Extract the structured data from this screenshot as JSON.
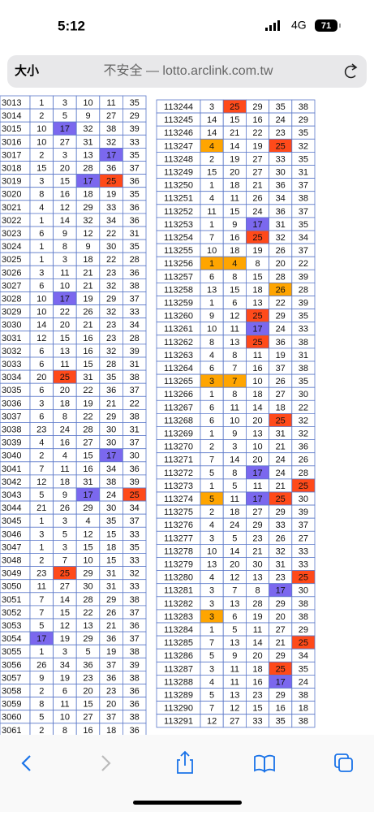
{
  "status": {
    "time": "5:12",
    "network": "4G",
    "battery": "71"
  },
  "url_bar": {
    "text_size": "大小",
    "address": "不安全 — lotto.arclink.com.tw"
  },
  "highlight": {
    "17": "#7b68ee",
    "25": "#ff4a1a"
  },
  "orange_color": "#ffa500",
  "orange": {
    "113247": [
      4
    ],
    "113256": [
      1,
      4
    ],
    "113258": [
      26
    ],
    "113265": [
      3,
      7
    ],
    "113274": [
      5
    ],
    "113283": [
      3
    ]
  },
  "left": {
    "rows": [
      [
        3013,
        1,
        3,
        10,
        11,
        35
      ],
      [
        3014,
        2,
        5,
        9,
        27,
        29
      ],
      [
        3015,
        10,
        17,
        32,
        38,
        39
      ],
      [
        3016,
        10,
        27,
        31,
        32,
        33
      ],
      [
        3017,
        2,
        3,
        13,
        17,
        35
      ],
      [
        3018,
        15,
        20,
        28,
        36,
        37
      ],
      [
        3019,
        3,
        15,
        17,
        25,
        36
      ],
      [
        3020,
        8,
        16,
        18,
        19,
        35
      ],
      [
        3021,
        4,
        12,
        29,
        33,
        36
      ],
      [
        3022,
        1,
        14,
        32,
        34,
        36
      ],
      [
        3023,
        6,
        9,
        12,
        22,
        31
      ],
      [
        3024,
        1,
        8,
        9,
        30,
        35
      ],
      [
        3025,
        1,
        3,
        18,
        22,
        28
      ],
      [
        3026,
        3,
        11,
        21,
        23,
        36
      ],
      [
        3027,
        6,
        10,
        21,
        32,
        38
      ],
      [
        3028,
        10,
        17,
        19,
        29,
        37
      ],
      [
        3029,
        10,
        22,
        26,
        32,
        33
      ],
      [
        3030,
        14,
        20,
        21,
        23,
        34
      ],
      [
        3031,
        12,
        15,
        16,
        23,
        28
      ],
      [
        3032,
        6,
        13,
        16,
        32,
        39
      ],
      [
        3033,
        6,
        11,
        15,
        28,
        31
      ],
      [
        3034,
        20,
        25,
        31,
        35,
        38
      ],
      [
        3035,
        6,
        20,
        22,
        36,
        37
      ],
      [
        3036,
        3,
        18,
        19,
        21,
        22
      ],
      [
        3037,
        6,
        8,
        22,
        29,
        38
      ],
      [
        3038,
        23,
        24,
        28,
        30,
        31
      ],
      [
        3039,
        4,
        16,
        27,
        30,
        37
      ],
      [
        3040,
        2,
        4,
        15,
        17,
        30
      ],
      [
        3041,
        7,
        11,
        16,
        34,
        36
      ],
      [
        3042,
        12,
        18,
        31,
        38,
        39
      ],
      [
        3043,
        5,
        9,
        17,
        24,
        25
      ],
      [
        3044,
        21,
        26,
        29,
        30,
        34
      ],
      [
        3045,
        1,
        3,
        4,
        35,
        37
      ],
      [
        3046,
        3,
        5,
        12,
        15,
        33
      ],
      [
        3047,
        1,
        3,
        15,
        18,
        35
      ],
      [
        3048,
        2,
        7,
        10,
        15,
        33
      ],
      [
        3049,
        23,
        25,
        29,
        31,
        32
      ],
      [
        3050,
        11,
        27,
        30,
        31,
        33
      ],
      [
        3051,
        7,
        14,
        28,
        29,
        38
      ],
      [
        3052,
        7,
        15,
        22,
        26,
        37
      ],
      [
        3053,
        5,
        12,
        13,
        21,
        36
      ],
      [
        3054,
        17,
        19,
        29,
        36,
        37
      ],
      [
        3055,
        1,
        3,
        5,
        19,
        38
      ],
      [
        3056,
        26,
        34,
        36,
        37,
        39
      ],
      [
        3057,
        9,
        19,
        23,
        36,
        38
      ],
      [
        3058,
        2,
        6,
        20,
        23,
        36
      ],
      [
        3059,
        8,
        11,
        15,
        20,
        36
      ],
      [
        3060,
        5,
        10,
        27,
        37,
        38
      ],
      [
        3061,
        2,
        8,
        16,
        18,
        36
      ]
    ]
  },
  "right": {
    "rows": [
      [
        113244,
        3,
        25,
        29,
        35,
        38
      ],
      [
        113245,
        14,
        15,
        16,
        24,
        29
      ],
      [
        113246,
        14,
        21,
        22,
        23,
        35
      ],
      [
        113247,
        4,
        14,
        19,
        25,
        32
      ],
      [
        113248,
        2,
        19,
        27,
        33,
        35
      ],
      [
        113249,
        15,
        20,
        27,
        30,
        31
      ],
      [
        113250,
        1,
        18,
        21,
        36,
        37
      ],
      [
        113251,
        4,
        11,
        26,
        34,
        38
      ],
      [
        113252,
        11,
        15,
        24,
        36,
        37
      ],
      [
        113253,
        1,
        9,
        17,
        31,
        35
      ],
      [
        113254,
        7,
        16,
        25,
        32,
        34
      ],
      [
        113255,
        10,
        18,
        19,
        26,
        37
      ],
      [
        113256,
        1,
        4,
        8,
        20,
        22
      ],
      [
        113257,
        6,
        8,
        15,
        28,
        39
      ],
      [
        113258,
        13,
        15,
        18,
        26,
        28
      ],
      [
        113259,
        1,
        6,
        13,
        22,
        39
      ],
      [
        113260,
        9,
        12,
        25,
        29,
        35
      ],
      [
        113261,
        10,
        11,
        17,
        24,
        33
      ],
      [
        113262,
        8,
        13,
        25,
        36,
        38
      ],
      [
        113263,
        4,
        8,
        11,
        19,
        31
      ],
      [
        113264,
        6,
        7,
        16,
        37,
        38
      ],
      [
        113265,
        3,
        7,
        10,
        26,
        35
      ],
      [
        113266,
        1,
        8,
        18,
        27,
        30
      ],
      [
        113267,
        6,
        11,
        14,
        18,
        22
      ],
      [
        113268,
        6,
        10,
        20,
        25,
        32
      ],
      [
        113269,
        1,
        9,
        13,
        31,
        32
      ],
      [
        113270,
        2,
        3,
        10,
        21,
        36
      ],
      [
        113271,
        7,
        14,
        20,
        24,
        26
      ],
      [
        113272,
        5,
        8,
        17,
        24,
        28
      ],
      [
        113273,
        1,
        5,
        11,
        21,
        25
      ],
      [
        113274,
        5,
        11,
        17,
        25,
        30
      ],
      [
        113275,
        2,
        18,
        27,
        29,
        39
      ],
      [
        113276,
        4,
        24,
        29,
        33,
        37
      ],
      [
        113277,
        3,
        5,
        23,
        26,
        27
      ],
      [
        113278,
        10,
        14,
        21,
        32,
        33
      ],
      [
        113279,
        13,
        20,
        30,
        31,
        33
      ],
      [
        113280,
        4,
        12,
        13,
        23,
        25
      ],
      [
        113281,
        3,
        7,
        8,
        17,
        30
      ],
      [
        113282,
        3,
        13,
        28,
        29,
        38
      ],
      [
        113283,
        3,
        6,
        19,
        20,
        38
      ],
      [
        113284,
        1,
        5,
        11,
        27,
        29
      ],
      [
        113285,
        7,
        13,
        14,
        21,
        25
      ],
      [
        113286,
        5,
        9,
        20,
        29,
        34
      ],
      [
        113287,
        3,
        11,
        18,
        25,
        35
      ],
      [
        113288,
        4,
        11,
        16,
        17,
        24
      ],
      [
        113289,
        5,
        13,
        23,
        29,
        38
      ],
      [
        113290,
        7,
        12,
        15,
        16,
        18
      ],
      [
        113291,
        12,
        27,
        33,
        35,
        38
      ]
    ]
  }
}
